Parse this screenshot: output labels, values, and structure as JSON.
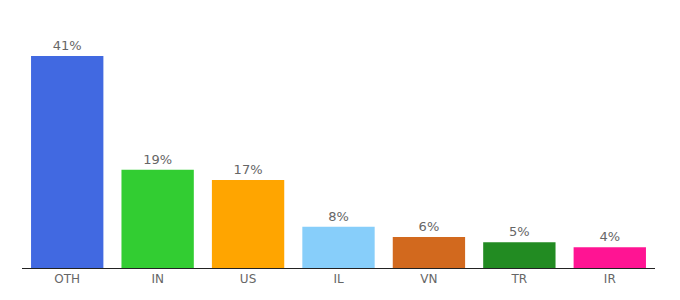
{
  "chart_data": {
    "type": "bar",
    "categories": [
      "OTH",
      "IN",
      "US",
      "IL",
      "VN",
      "TR",
      "IR"
    ],
    "values": [
      41,
      19,
      17,
      8,
      6,
      5,
      4
    ],
    "value_labels": [
      "41%",
      "19%",
      "17%",
      "8%",
      "6%",
      "5%",
      "4%"
    ],
    "colors": [
      "#4169e1",
      "#32cd32",
      "#ffa500",
      "#87cefa",
      "#d2691e",
      "#228b22",
      "#ff1493"
    ],
    "ylim": [
      0,
      41
    ],
    "data_labels": true,
    "tick_labels": "x",
    "grid": false
  }
}
